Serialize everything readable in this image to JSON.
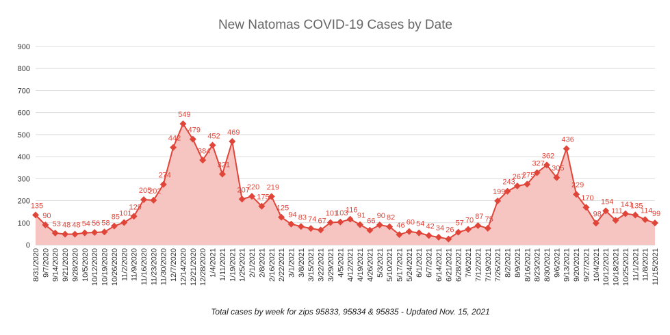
{
  "chart_data": {
    "type": "area",
    "title": "New Natomas COVID-19 Cases by Date",
    "caption": "Total cases by week for zips 95833, 95834 & 95835 - Updated Nov. 15, 2021",
    "x": [
      "8/31/2020",
      "9/7/2020",
      "9/14/2020",
      "9/21/2020",
      "9/28/2020",
      "10/5/2020",
      "10/12/2020",
      "10/19/2020",
      "10/26/2020",
      "11/2/2020",
      "11/9/2020",
      "11/16/2020",
      "11/23/2020",
      "11/30/2020",
      "12/7/2020",
      "12/14/2020",
      "12/21/2020",
      "12/28/2020",
      "1/4/2021",
      "1/11/2021",
      "1/19/2021",
      "1/25/2021",
      "2/1/2021",
      "2/8/2021",
      "2/16/2021",
      "2/22/2021",
      "3/1/2021",
      "3/8/2021",
      "3/15/2021",
      "3/22/2021",
      "3/29/2021",
      "4/5/2021",
      "4/12/2021",
      "4/19/2021",
      "4/26/2021",
      "5/3/2021",
      "5/10/2021",
      "5/17/2021",
      "5/24/2021",
      "6/1/2021",
      "6/7/2021",
      "6/14/2021",
      "6/21/2021",
      "6/28/2021",
      "7/6/2021",
      "7/12/2021",
      "7/19/2021",
      "7/26/2021",
      "8/2/2021",
      "8/9/2021",
      "8/16/2021",
      "8/23/2021",
      "8/30/2021",
      "9/6/2021",
      "9/13/2021",
      "9/20/2021",
      "9/27/2021",
      "10/4/2021",
      "10/12/2021",
      "10/18/2021",
      "10/25/2021",
      "11/1/2021",
      "11/8/2021",
      "11/15/2021"
    ],
    "values": [
      135,
      90,
      53,
      48,
      48,
      54,
      56,
      58,
      85,
      101,
      129,
      205,
      202,
      274,
      442,
      549,
      479,
      384,
      452,
      321,
      469,
      207,
      220,
      175,
      219,
      125,
      94,
      83,
      74,
      67,
      101,
      103,
      116,
      91,
      66,
      90,
      82,
      46,
      60,
      54,
      42,
      34,
      26,
      57,
      70,
      87,
      75,
      199,
      243,
      267,
      275,
      327,
      362,
      305,
      436,
      229,
      170,
      98,
      154,
      111,
      141,
      135,
      114,
      99
    ],
    "color": "#e0453a",
    "fill": "#f6c5c1",
    "ylim": [
      0,
      900
    ],
    "yticks": [
      0,
      100,
      200,
      300,
      400,
      500,
      600,
      700,
      800,
      900
    ],
    "grid": true
  }
}
